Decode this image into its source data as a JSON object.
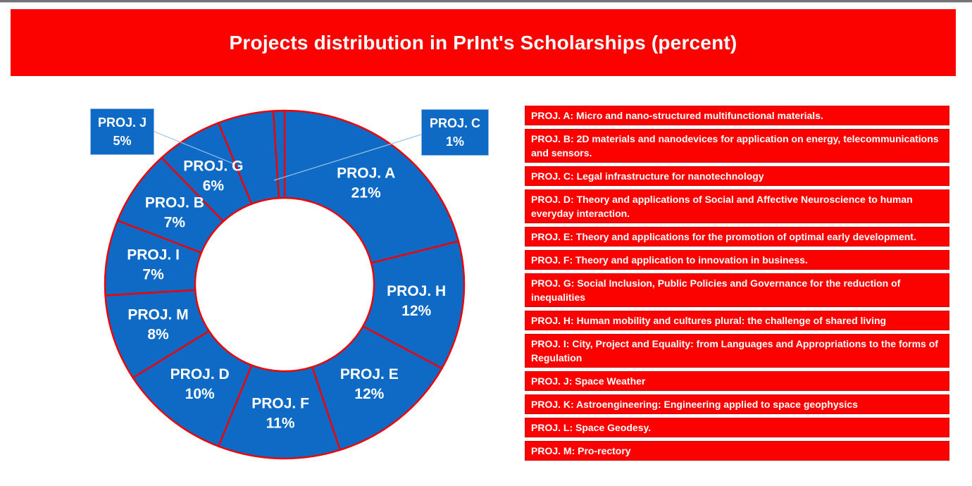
{
  "page": {
    "title": "Projects distribution in PrInt's Scholarships (percent)"
  },
  "colors": {
    "banner_red": "#fb0200",
    "legend_red": "#fb0200",
    "pie_blue": "#0e6ac4",
    "pie_border_red": "#f20000",
    "leader_line_blue": "#9dc3e6",
    "label_white": "#ffffff"
  },
  "chart_data": {
    "type": "pie",
    "subtype": "donut",
    "title": "Projects distribution in PrInt's Scholarships (percent)",
    "unit": "percent",
    "direction": "clockwise",
    "start_angle_deg": 0,
    "hole_ratio": 0.5,
    "single_color_series": true,
    "segments": [
      {
        "label": "PROJ. A",
        "value": 21,
        "label_style": "inside"
      },
      {
        "label": "PROJ. H",
        "value": 12,
        "label_style": "inside"
      },
      {
        "label": "PROJ. E",
        "value": 12,
        "label_style": "inside"
      },
      {
        "label": "PROJ. F",
        "value": 11,
        "label_style": "inside"
      },
      {
        "label": "PROJ. D",
        "value": 10,
        "label_style": "inside"
      },
      {
        "label": "PROJ. M",
        "value": 8,
        "label_style": "inside"
      },
      {
        "label": "PROJ. I",
        "value": 7,
        "label_style": "inside"
      },
      {
        "label": "PROJ. B",
        "value": 7,
        "label_style": "inside"
      },
      {
        "label": "PROJ. G",
        "value": 6,
        "label_style": "inside"
      },
      {
        "label": "PROJ. J",
        "value": 5,
        "label_style": "callout-left"
      },
      {
        "label": "PROJ. C",
        "value": 1,
        "label_style": "callout-right"
      }
    ]
  },
  "legend": {
    "items": [
      "PROJ. A: Micro and nano-structured multifunctional materials.",
      "PROJ. B: 2D materials and nanodevices for application on energy, telecommunications and sensors.",
      "PROJ. C: Legal infrastructure for nanotechnology",
      "PROJ. D: Theory and applications of Social and Affective Neuroscience to human everyday interaction.",
      "PROJ. E: Theory and applications for the promotion of optimal early development.",
      "PROJ. F: Theory and application to innovation in business.",
      "PROJ. G: Social Inclusion, Public Policies and Governance for the reduction of inequalities",
      "PROJ. H: Human mobility and cultures plural: the challenge of shared living",
      "PROJ. I: City, Project and Equality: from Languages and Appropriations to the forms of Regulation",
      "PROJ. J: Space Weather",
      "PROJ. K: Astroengineering: Engineering applied to space geophysics",
      "PROJ. L: Space Geodesy.",
      "PROJ. M: Pro-rectory"
    ]
  }
}
